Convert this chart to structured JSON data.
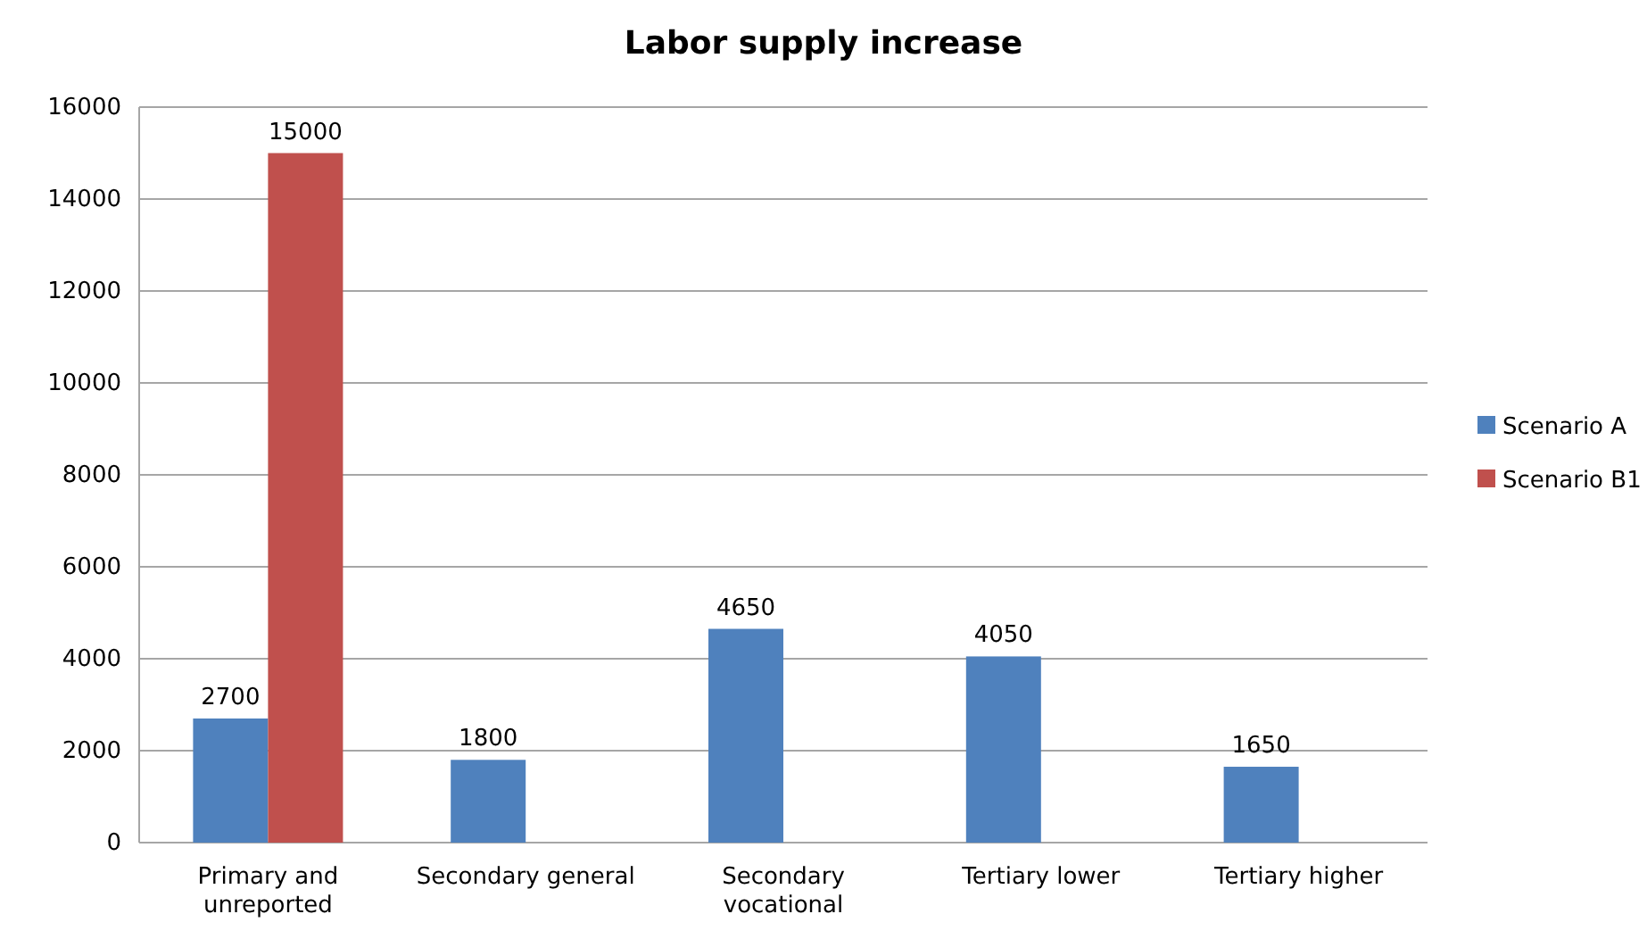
{
  "chart_data": {
    "type": "bar",
    "title": "Labor supply increase",
    "categories": [
      "Primary and unreported",
      "Secondary general",
      "Secondary vocational",
      "Tertiary lower",
      "Tertiary higher"
    ],
    "series": [
      {
        "name": "Scenario A",
        "color": "#4f81bd",
        "values": [
          2700,
          1800,
          4650,
          4050,
          1650
        ]
      },
      {
        "name": "Scenario B1",
        "color": "#c0504d",
        "values": [
          15000,
          null,
          null,
          null,
          null
        ]
      }
    ],
    "ylim": [
      0,
      16000
    ],
    "yticks": [
      0,
      2000,
      4000,
      6000,
      8000,
      10000,
      12000,
      14000,
      16000
    ],
    "grid": "y",
    "legend": "right",
    "data_labels": true
  }
}
